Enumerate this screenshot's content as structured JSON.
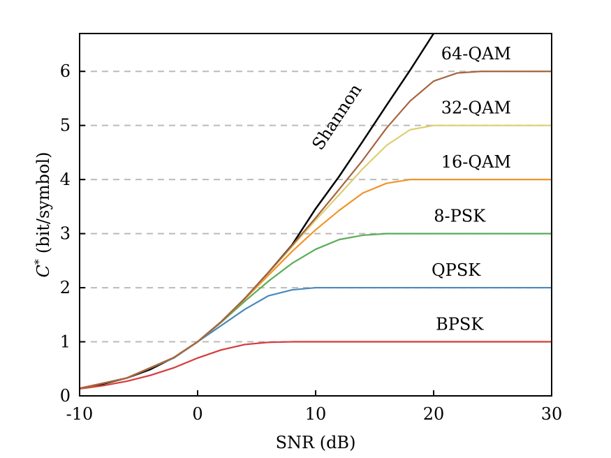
{
  "chart_data": {
    "type": "line",
    "xlabel": "SNR (dB)",
    "ylabel_symbol": "C",
    "ylabel_superscript": "*",
    "ylabel_unit": "(bit/symbol)",
    "xlim": [
      -10,
      30
    ],
    "ylim": [
      0,
      6.7
    ],
    "xticks": [
      -10,
      0,
      10,
      20,
      30
    ],
    "yticks": [
      0,
      1,
      2,
      3,
      4,
      5,
      6
    ],
    "grid": "horizontal-dashed",
    "gridlines_y": [
      1,
      2,
      3,
      4,
      5,
      6
    ],
    "colors": {
      "Shannon": "#000000",
      "BPSK": "#d63a3a",
      "QPSK": "#4a89be",
      "8-PSK": "#5aac57",
      "16-QAM": "#f2932a",
      "32-QAM": "#ddcf6f",
      "64-QAM": "#a6633e",
      "grid": "#bbbbbb"
    },
    "series": [
      {
        "name": "Shannon",
        "x": [
          -10,
          -8,
          -6,
          -4,
          -2,
          0,
          2,
          4,
          6,
          8,
          10,
          12,
          14,
          16,
          18,
          20
        ],
        "y": [
          0.14,
          0.22,
          0.33,
          0.49,
          0.71,
          1.0,
          1.37,
          1.8,
          2.28,
          2.79,
          3.46,
          4.06,
          4.71,
          5.37,
          6.02,
          6.7
        ]
      },
      {
        "name": "BPSK",
        "x": [
          -10,
          -8,
          -6,
          -4,
          -2,
          0,
          2,
          4,
          6,
          8,
          10,
          15,
          20,
          25,
          30
        ],
        "y": [
          0.13,
          0.19,
          0.27,
          0.38,
          0.52,
          0.7,
          0.85,
          0.95,
          0.99,
          1.0,
          1.0,
          1.0,
          1.0,
          1.0,
          1.0
        ]
      },
      {
        "name": "QPSK",
        "x": [
          -10,
          -6,
          -2,
          0,
          2,
          4,
          6,
          8,
          10,
          15,
          20,
          25,
          30
        ],
        "y": [
          0.14,
          0.33,
          0.7,
          1.0,
          1.3,
          1.6,
          1.85,
          1.96,
          2.0,
          2.0,
          2.0,
          2.0,
          2.0
        ]
      },
      {
        "name": "8-PSK",
        "x": [
          -10,
          -6,
          -2,
          0,
          2,
          4,
          6,
          8,
          10,
          12,
          14,
          16,
          20,
          25,
          30
        ],
        "y": [
          0.14,
          0.33,
          0.71,
          1.0,
          1.36,
          1.75,
          2.12,
          2.45,
          2.71,
          2.89,
          2.97,
          3.0,
          3.0,
          3.0,
          3.0
        ]
      },
      {
        "name": "16-QAM",
        "x": [
          -10,
          -6,
          -2,
          0,
          2,
          4,
          6,
          8,
          10,
          12,
          14,
          16,
          18,
          20,
          25,
          30
        ],
        "y": [
          0.14,
          0.33,
          0.71,
          1.0,
          1.37,
          1.79,
          2.23,
          2.67,
          3.07,
          3.43,
          3.75,
          3.93,
          4.0,
          4.0,
          4.0,
          4.0
        ]
      },
      {
        "name": "32-QAM",
        "x": [
          -10,
          -6,
          -2,
          0,
          2,
          4,
          6,
          8,
          10,
          12,
          14,
          16,
          18,
          20,
          22,
          25,
          30
        ],
        "y": [
          0.14,
          0.33,
          0.71,
          1.0,
          1.37,
          1.8,
          2.27,
          2.76,
          3.25,
          3.72,
          4.2,
          4.63,
          4.92,
          5.0,
          5.0,
          5.0,
          5.0
        ]
      },
      {
        "name": "64-QAM",
        "x": [
          -10,
          -6,
          -2,
          0,
          2,
          4,
          6,
          8,
          10,
          12,
          14,
          16,
          18,
          20,
          22,
          24,
          30
        ],
        "y": [
          0.14,
          0.33,
          0.71,
          1.0,
          1.37,
          1.8,
          2.28,
          2.78,
          3.29,
          3.82,
          4.36,
          4.95,
          5.45,
          5.82,
          5.97,
          6.0,
          6.0
        ]
      }
    ],
    "annotations": [
      {
        "text": "Shannon",
        "target": "Shannon",
        "x": 12.2,
        "y": 5.1,
        "rotate": true
      },
      {
        "text": "64-QAM",
        "target": "64-QAM",
        "x": 23.6,
        "y": 6.22
      },
      {
        "text": "32-QAM",
        "target": "32-QAM",
        "x": 23.6,
        "y": 5.22
      },
      {
        "text": "16-QAM",
        "target": "16-QAM",
        "x": 23.6,
        "y": 4.22
      },
      {
        "text": "8-PSK",
        "target": "8-PSK",
        "x": 22.2,
        "y": 3.22
      },
      {
        "text": "QPSK",
        "target": "QPSK",
        "x": 21.9,
        "y": 2.22
      },
      {
        "text": "BPSK",
        "target": "BPSK",
        "x": 22.2,
        "y": 1.22
      }
    ]
  }
}
